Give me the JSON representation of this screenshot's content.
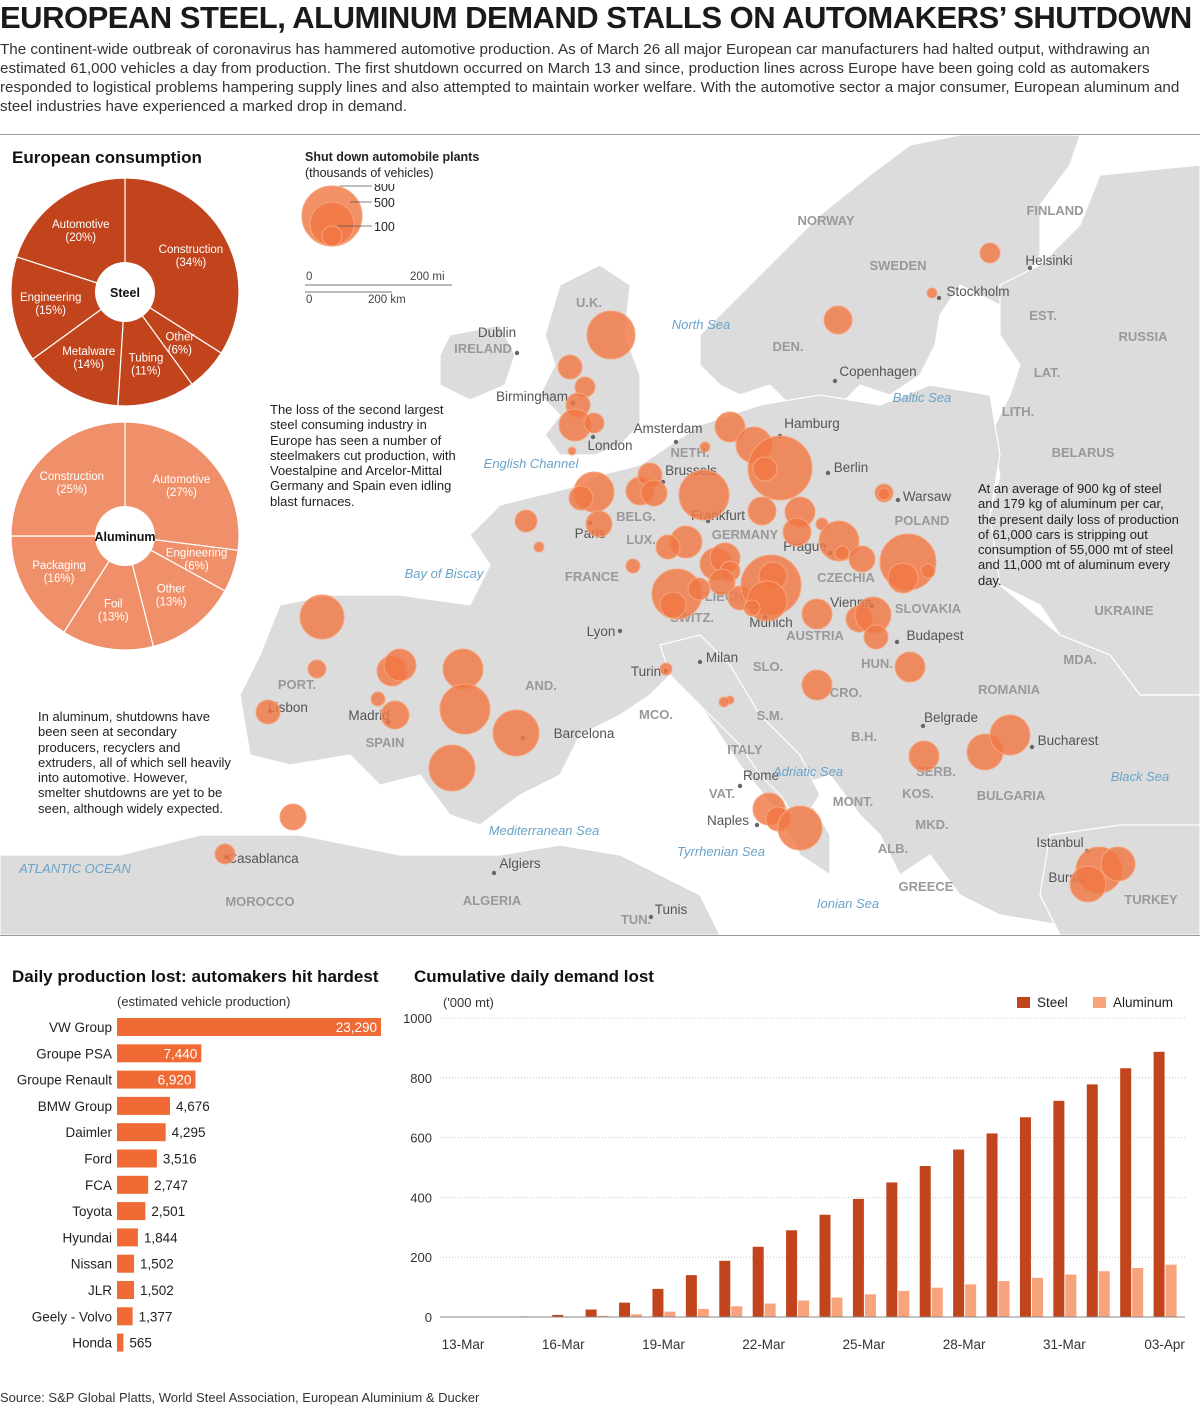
{
  "title": "EUROPEAN STEEL, ALUMINUM DEMAND STALLS ON AUTOMAKERS’ SHUTDOWN",
  "intro": "The continent-wide outbreak of coronavirus has hammered automotive production. As of March 26 all major European car manufacturers had halted output, withdrawing an estimated 61,000 vehicles a day from production. The first shutdown occurred on March 13 and since, production lines across Europe have been going cold as automakers responded to logistical problems hampering supply lines and also attempted to maintain worker welfare. With the automotive sector a major consumer, European aluminum and steel industries have experienced a marked drop in demand.",
  "consumption_title": "European consumption",
  "legend": {
    "title": "Shut down automobile plants",
    "subtitle": "(thousands of vehicles)",
    "sizes": [
      "800",
      "500",
      "100"
    ],
    "scale_mi": [
      "0",
      "200 mi"
    ],
    "scale_km": [
      "0",
      "200 km"
    ]
  },
  "notes": {
    "steel": "The loss of the second largest steel consuming industry in Europe has seen a number of steelmakers cut production, with Voestalpine and Arcelor-Mittal Germany and Spain even idling blast furnaces.",
    "average": "At an average of 900 kg of steel and 179 kg of aluminum per car, the present daily loss of production of 61,000 cars is stripping out consumption of 55,000 mt of steel and 11,000 mt of aluminum every day.",
    "aluminum": "In aluminum, shutdowns have been seen at secondary producers, recyclers and extruders, all of which sell heavily into automotive. However, smelter shutdowns are yet to be seen, although widely expected."
  },
  "map_labels": {
    "countries": [
      "NORWAY",
      "SWEDEN",
      "FINLAND",
      "RUSSIA",
      "EST.",
      "LAT.",
      "LITH.",
      "BELARUS",
      "U.K.",
      "IRELAND",
      "DEN.",
      "NETH.",
      "BELG.",
      "LUX.",
      "GERMANY",
      "POLAND",
      "CZECHIA",
      "SLOVAKIA",
      "UKRAINE",
      "FRANCE",
      "SWITZ.",
      "LIECH.",
      "AUSTRIA",
      "HUN.",
      "MDA.",
      "ROMANIA",
      "SLO.",
      "CRO.",
      "B.H.",
      "S.M.",
      "SERB.",
      "MONT.",
      "KOS.",
      "BULGARIA",
      "MKD.",
      "ALB.",
      "GREECE",
      "TURKEY",
      "PORT.",
      "SPAIN",
      "AND.",
      "MCO.",
      "ITALY",
      "VAT.",
      "MOROCCO",
      "ALGERIA",
      "TUN."
    ],
    "cities": [
      "Helsinki",
      "Stockholm",
      "Copenhagen",
      "Dublin",
      "Birmingham",
      "London",
      "Amsterdam",
      "Hamburg",
      "Brussels",
      "Berlin",
      "Warsaw",
      "Frankfurt",
      "Paris",
      "Prague",
      "Vienna",
      "Munich",
      "Budapest",
      "Lyon",
      "Milan",
      "Turin",
      "Belgrade",
      "Bucharest",
      "Madrid",
      "Lisbon",
      "Barcelona",
      "Rome",
      "Naples",
      "Istanbul",
      "Bursa",
      "Casablanca",
      "Algiers",
      "Tunis"
    ],
    "seas": [
      "North Sea",
      "Baltic Sea",
      "English Channel",
      "Bay of Biscay",
      "Adriatic Sea",
      "Black Sea",
      "Mediterranean Sea",
      "Tyrrhenian Sea",
      "Ionian Sea",
      "ATLANTIC OCEAN"
    ]
  },
  "pies": {
    "steel": {
      "label": "Steel",
      "color": "#c1441c",
      "slices": [
        {
          "name": "Construction",
          "value": 34
        },
        {
          "name": "Other",
          "value": 6
        },
        {
          "name": "Tubing",
          "value": 11
        },
        {
          "name": "Metalware",
          "value": 14
        },
        {
          "name": "Engineering",
          "value": 15
        },
        {
          "name": "Automotive",
          "value": 20
        }
      ]
    },
    "aluminum": {
      "label": "Aluminum",
      "color": "#f0906a",
      "slices": [
        {
          "name": "Automotive",
          "value": 27
        },
        {
          "name": "Engineering",
          "value": 6
        },
        {
          "name": "Other",
          "value": 13
        },
        {
          "name": "Foil",
          "value": 13
        },
        {
          "name": "Packaging",
          "value": 16
        },
        {
          "name": "Construction",
          "value": 25
        }
      ]
    }
  },
  "bars_title": "Daily production lost: automakers hit hardest",
  "bars_subtitle": "(estimated vehicle production)",
  "cum_title": "Cumulative daily demand lost",
  "source": "Source: S&P Global Platts, World Steel Association, European Aluminium & Ducker",
  "colors": {
    "steel": "#c1441c",
    "aluminum": "#f7a47c",
    "bar": "#f06a35",
    "bubble": "#f07844",
    "land": "#dcdcdc"
  },
  "chart_data": [
    {
      "type": "bar",
      "title": "Daily production lost: automakers hit hardest",
      "subtitle": "(estimated vehicle production)",
      "categories": [
        "VW Group",
        "Groupe PSA",
        "Groupe Renault",
        "BMW Group",
        "Daimler",
        "Ford",
        "FCA",
        "Toyota",
        "Hyundai",
        "Nissan",
        "JLR",
        "Geely - Volvo",
        "Honda"
      ],
      "values": [
        23290,
        7440,
        6920,
        4676,
        4295,
        3516,
        2747,
        2501,
        1844,
        1502,
        1502,
        1377,
        565
      ],
      "value_labels": [
        "23,290",
        "7,440",
        "6,920",
        "4,676",
        "4,295",
        "3,516",
        "2,747",
        "2,501",
        "1,844",
        "1,502",
        "1,502",
        "1,377",
        "565"
      ],
      "orientation": "horizontal"
    },
    {
      "type": "bar",
      "title": "Cumulative daily demand lost",
      "ylabel": "('000 mt)",
      "ylim": [
        0,
        1000
      ],
      "yticks": [
        "1000",
        "800",
        "600",
        "400",
        "200",
        "0"
      ],
      "x": [
        "13-Mar",
        "14-Mar",
        "15-Mar",
        "16-Mar",
        "17-Mar",
        "18-Mar",
        "19-Mar",
        "20-Mar",
        "21-Mar",
        "22-Mar",
        "23-Mar",
        "24-Mar",
        "25-Mar",
        "26-Mar",
        "27-Mar",
        "28-Mar",
        "29-Mar",
        "30-Mar",
        "31-Mar",
        "01-Apr",
        "02-Apr",
        "03-Apr"
      ],
      "xtick_labels": [
        "13-Mar",
        "16-Mar",
        "19-Mar",
        "22-Mar",
        "25-Mar",
        "28-Mar",
        "31-Mar",
        "03-Apr"
      ],
      "series": [
        {
          "name": "Steel",
          "values": [
            1,
            1,
            2,
            7,
            25,
            48,
            94,
            140,
            188,
            235,
            290,
            342,
            395,
            450,
            505,
            560,
            614,
            668,
            723,
            778,
            832,
            887
          ]
        },
        {
          "name": "Aluminum",
          "values": [
            0,
            0,
            0,
            1,
            4,
            9,
            18,
            27,
            36,
            45,
            55,
            65,
            76,
            87,
            98,
            109,
            120,
            131,
            142,
            153,
            164,
            175
          ]
        }
      ]
    }
  ]
}
